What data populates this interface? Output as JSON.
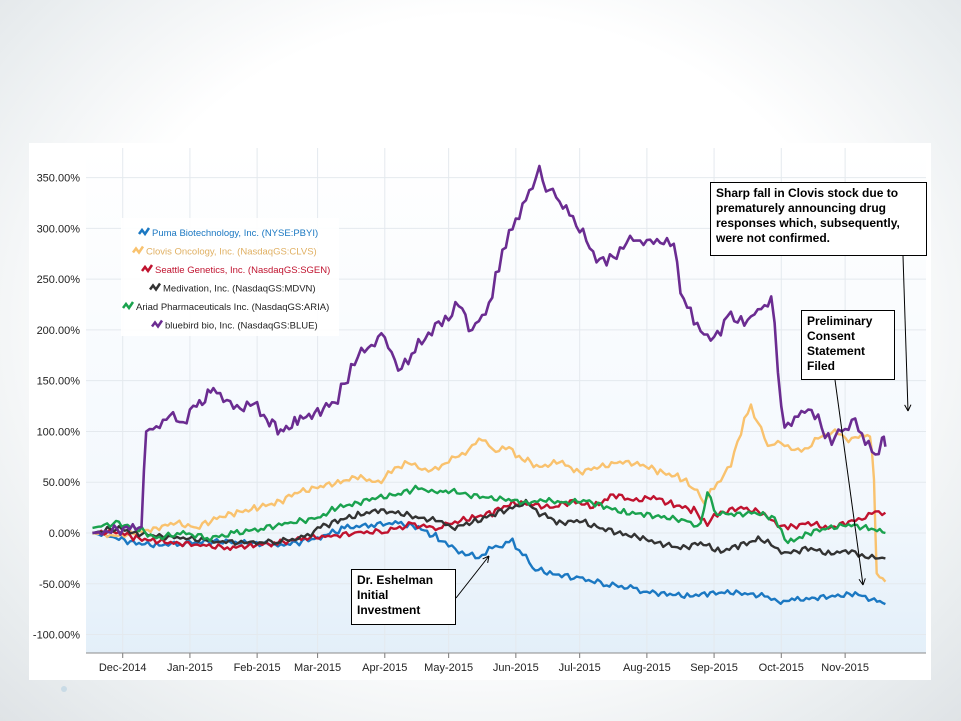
{
  "chart_data": {
    "type": "line",
    "title": "",
    "xlabel": "",
    "ylabel": "",
    "ylim": [
      -110,
      370
    ],
    "x_range": [
      0,
      11.5
    ],
    "y_ticks": [
      {
        "value": 350,
        "label": "350.00%"
      },
      {
        "value": 300,
        "label": "300.00%"
      },
      {
        "value": 250,
        "label": "250.00%"
      },
      {
        "value": 200,
        "label": "200.00%"
      },
      {
        "value": 150,
        "label": "150.00%"
      },
      {
        "value": 100,
        "label": "100.00%"
      },
      {
        "value": 50,
        "label": "50.00%"
      },
      {
        "value": 0,
        "label": "0.00%"
      },
      {
        "value": -50,
        "label": "-50.00%"
      },
      {
        "value": -100,
        "label": "-100.00%"
      }
    ],
    "x_ticks": [
      {
        "value": 0.1,
        "label": "Dec-2014"
      },
      {
        "value": 1.1,
        "label": "Jan-2015"
      },
      {
        "value": 2.1,
        "label": "Feb-2015"
      },
      {
        "value": 3.0,
        "label": "Mar-2015"
      },
      {
        "value": 4.0,
        "label": "Apr-2015"
      },
      {
        "value": 4.95,
        "label": "May-2015"
      },
      {
        "value": 5.95,
        "label": "Jun-2015"
      },
      {
        "value": 6.9,
        "label": "Jul-2015"
      },
      {
        "value": 7.9,
        "label": "Aug-2015"
      },
      {
        "value": 8.9,
        "label": "Sep-2015"
      },
      {
        "value": 9.9,
        "label": "Oct-2015"
      },
      {
        "value": 10.85,
        "label": "Nov-2015"
      }
    ],
    "series": [
      {
        "name": "Puma Biotechnology, Inc. (NYSE:PBYI)",
        "color": "#1b78c2",
        "points": [
          [
            -0.35,
            0
          ],
          [
            0,
            -5
          ],
          [
            0.3,
            -10
          ],
          [
            0.6,
            -12
          ],
          [
            1.0,
            -10
          ],
          [
            1.5,
            -8
          ],
          [
            2.0,
            -10
          ],
          [
            2.5,
            -12
          ],
          [
            3.0,
            -5
          ],
          [
            3.4,
            5
          ],
          [
            3.8,
            8
          ],
          [
            4.2,
            10
          ],
          [
            4.5,
            5
          ],
          [
            4.8,
            -5
          ],
          [
            5.0,
            -15
          ],
          [
            5.2,
            -20
          ],
          [
            5.4,
            -25
          ],
          [
            5.55,
            -15
          ],
          [
            5.75,
            -12
          ],
          [
            5.9,
            -8
          ],
          [
            6.05,
            -20
          ],
          [
            6.2,
            -35
          ],
          [
            6.5,
            -40
          ],
          [
            6.9,
            -45
          ],
          [
            7.3,
            -50
          ],
          [
            7.7,
            -55
          ],
          [
            7.9,
            -58
          ],
          [
            8.2,
            -60
          ],
          [
            8.5,
            -62
          ],
          [
            8.8,
            -60
          ],
          [
            9.1,
            -58
          ],
          [
            9.4,
            -60
          ],
          [
            9.65,
            -62
          ],
          [
            9.85,
            -68
          ],
          [
            10.1,
            -66
          ],
          [
            10.4,
            -64
          ],
          [
            10.7,
            -62
          ],
          [
            11.0,
            -60
          ],
          [
            11.2,
            -64
          ],
          [
            11.45,
            -70
          ]
        ]
      },
      {
        "name": "Clovis Oncology, Inc. (NasdaqGS:CLVS)",
        "color": "#f9c26e",
        "points": [
          [
            -0.35,
            0
          ],
          [
            0,
            -3
          ],
          [
            0.3,
            0
          ],
          [
            0.6,
            5
          ],
          [
            0.9,
            10
          ],
          [
            1.2,
            5
          ],
          [
            1.5,
            15
          ],
          [
            1.8,
            20
          ],
          [
            2.1,
            25
          ],
          [
            2.4,
            30
          ],
          [
            2.7,
            40
          ],
          [
            3.0,
            45
          ],
          [
            3.3,
            50
          ],
          [
            3.6,
            55
          ],
          [
            3.9,
            50
          ],
          [
            4.1,
            60
          ],
          [
            4.3,
            70
          ],
          [
            4.5,
            65
          ],
          [
            4.7,
            60
          ],
          [
            4.9,
            70
          ],
          [
            5.1,
            75
          ],
          [
            5.3,
            85
          ],
          [
            5.45,
            95
          ],
          [
            5.6,
            80
          ],
          [
            5.8,
            85
          ],
          [
            6.0,
            75
          ],
          [
            6.3,
            65
          ],
          [
            6.6,
            70
          ],
          [
            6.9,
            60
          ],
          [
            7.2,
            65
          ],
          [
            7.5,
            70
          ],
          [
            7.8,
            68
          ],
          [
            8.1,
            60
          ],
          [
            8.4,
            55
          ],
          [
            8.65,
            40
          ],
          [
            8.75,
            30
          ],
          [
            8.9,
            45
          ],
          [
            9.1,
            60
          ],
          [
            9.3,
            100
          ],
          [
            9.45,
            125
          ],
          [
            9.55,
            110
          ],
          [
            9.7,
            85
          ],
          [
            9.9,
            90
          ],
          [
            10.1,
            80
          ],
          [
            10.3,
            85
          ],
          [
            10.5,
            95
          ],
          [
            10.7,
            100
          ],
          [
            10.9,
            92
          ],
          [
            11.1,
            95
          ],
          [
            11.22,
            100
          ],
          [
            11.28,
            50
          ],
          [
            11.32,
            -40
          ],
          [
            11.45,
            -48
          ]
        ]
      },
      {
        "name": "Seattle Genetics, Inc. (NasdaqGS:SGEN)",
        "color": "#c0132f",
        "points": [
          [
            -0.35,
            0
          ],
          [
            0,
            2
          ],
          [
            0.3,
            -5
          ],
          [
            0.6,
            -8
          ],
          [
            0.9,
            -10
          ],
          [
            1.3,
            -12
          ],
          [
            1.7,
            -15
          ],
          [
            2.0,
            -12
          ],
          [
            2.4,
            -10
          ],
          [
            2.8,
            -5
          ],
          [
            3.2,
            -3
          ],
          [
            3.6,
            0
          ],
          [
            4.0,
            2
          ],
          [
            4.4,
            8
          ],
          [
            4.8,
            5
          ],
          [
            5.0,
            10
          ],
          [
            5.3,
            15
          ],
          [
            5.6,
            20
          ],
          [
            5.9,
            30
          ],
          [
            6.2,
            28
          ],
          [
            6.5,
            25
          ],
          [
            6.8,
            32
          ],
          [
            7.1,
            25
          ],
          [
            7.4,
            38
          ],
          [
            7.7,
            32
          ],
          [
            8.0,
            35
          ],
          [
            8.3,
            28
          ],
          [
            8.6,
            22
          ],
          [
            8.8,
            10
          ],
          [
            9.0,
            20
          ],
          [
            9.3,
            25
          ],
          [
            9.6,
            20
          ],
          [
            9.8,
            10
          ],
          [
            10.0,
            5
          ],
          [
            10.3,
            10
          ],
          [
            10.6,
            5
          ],
          [
            10.9,
            10
          ],
          [
            11.1,
            15
          ],
          [
            11.3,
            20
          ],
          [
            11.45,
            20
          ]
        ]
      },
      {
        "name": "Medivation, Inc. (NasdaqGS:MDVN)",
        "color": "#333333",
        "points": [
          [
            -0.35,
            0
          ],
          [
            0,
            5
          ],
          [
            0.3,
            0
          ],
          [
            0.6,
            -3
          ],
          [
            1.0,
            -5
          ],
          [
            1.5,
            -8
          ],
          [
            2.0,
            -10
          ],
          [
            2.4,
            -8
          ],
          [
            2.8,
            -5
          ],
          [
            3.0,
            5
          ],
          [
            3.3,
            12
          ],
          [
            3.6,
            18
          ],
          [
            3.9,
            22
          ],
          [
            4.2,
            20
          ],
          [
            4.5,
            15
          ],
          [
            4.8,
            12
          ],
          [
            5.0,
            5
          ],
          [
            5.3,
            10
          ],
          [
            5.6,
            18
          ],
          [
            5.9,
            25
          ],
          [
            6.1,
            30
          ],
          [
            6.3,
            20
          ],
          [
            6.6,
            10
          ],
          [
            6.9,
            12
          ],
          [
            7.2,
            5
          ],
          [
            7.5,
            0
          ],
          [
            7.8,
            -5
          ],
          [
            8.1,
            -10
          ],
          [
            8.4,
            -15
          ],
          [
            8.7,
            -10
          ],
          [
            9.0,
            -18
          ],
          [
            9.3,
            -12
          ],
          [
            9.6,
            -5
          ],
          [
            9.8,
            -15
          ],
          [
            10.0,
            -20
          ],
          [
            10.3,
            -15
          ],
          [
            10.6,
            -20
          ],
          [
            10.9,
            -18
          ],
          [
            11.1,
            -22
          ],
          [
            11.3,
            -25
          ],
          [
            11.45,
            -25
          ]
        ]
      },
      {
        "name": "Ariad Pharmaceuticals Inc. (NasdaqGS:ARIA)",
        "color": "#1aa24e",
        "points": [
          [
            -0.35,
            5
          ],
          [
            0,
            10
          ],
          [
            0.3,
            5
          ],
          [
            0.6,
            -5
          ],
          [
            1.0,
            0
          ],
          [
            1.4,
            -5
          ],
          [
            1.8,
            0
          ],
          [
            2.2,
            5
          ],
          [
            2.6,
            10
          ],
          [
            3.0,
            15
          ],
          [
            3.3,
            25
          ],
          [
            3.6,
            30
          ],
          [
            3.9,
            35
          ],
          [
            4.2,
            38
          ],
          [
            4.5,
            45
          ],
          [
            4.7,
            40
          ],
          [
            4.95,
            42
          ],
          [
            5.2,
            38
          ],
          [
            5.5,
            35
          ],
          [
            5.8,
            33
          ],
          [
            6.1,
            30
          ],
          [
            6.4,
            32
          ],
          [
            6.7,
            30
          ],
          [
            7.0,
            32
          ],
          [
            7.3,
            25
          ],
          [
            7.6,
            20
          ],
          [
            7.9,
            18
          ],
          [
            8.2,
            15
          ],
          [
            8.5,
            12
          ],
          [
            8.7,
            5
          ],
          [
            8.8,
            45
          ],
          [
            8.9,
            20
          ],
          [
            9.2,
            18
          ],
          [
            9.5,
            20
          ],
          [
            9.8,
            15
          ],
          [
            10.0,
            -10
          ],
          [
            10.3,
            0
          ],
          [
            10.6,
            5
          ],
          [
            10.9,
            8
          ],
          [
            11.2,
            5
          ],
          [
            11.45,
            0
          ]
        ]
      },
      {
        "name": "bluebird bio, Inc. (NasdaqGS:BLUE)",
        "color": "#6b2c91",
        "points": [
          [
            -0.35,
            0
          ],
          [
            0.25,
            5
          ],
          [
            0.38,
            10
          ],
          [
            0.45,
            100
          ],
          [
            0.6,
            105
          ],
          [
            0.8,
            115
          ],
          [
            1.0,
            110
          ],
          [
            1.2,
            125
          ],
          [
            1.45,
            140
          ],
          [
            1.6,
            135
          ],
          [
            1.8,
            120
          ],
          [
            2.0,
            130
          ],
          [
            2.2,
            115
          ],
          [
            2.45,
            100
          ],
          [
            2.7,
            110
          ],
          [
            3.0,
            120
          ],
          [
            3.3,
            130
          ],
          [
            3.5,
            165
          ],
          [
            3.7,
            180
          ],
          [
            3.9,
            190
          ],
          [
            4.0,
            198
          ],
          [
            4.1,
            175
          ],
          [
            4.2,
            160
          ],
          [
            4.35,
            170
          ],
          [
            4.5,
            185
          ],
          [
            4.7,
            200
          ],
          [
            4.9,
            210
          ],
          [
            5.1,
            225
          ],
          [
            5.3,
            200
          ],
          [
            5.45,
            215
          ],
          [
            5.6,
            230
          ],
          [
            5.75,
            280
          ],
          [
            5.9,
            300
          ],
          [
            6.05,
            320
          ],
          [
            6.2,
            345
          ],
          [
            6.3,
            355
          ],
          [
            6.4,
            340
          ],
          [
            6.55,
            330
          ],
          [
            6.7,
            320
          ],
          [
            6.9,
            300
          ],
          [
            7.1,
            275
          ],
          [
            7.3,
            265
          ],
          [
            7.5,
            280
          ],
          [
            7.7,
            290
          ],
          [
            7.9,
            285
          ],
          [
            8.1,
            290
          ],
          [
            8.3,
            280
          ],
          [
            8.45,
            230
          ],
          [
            8.6,
            210
          ],
          [
            8.8,
            190
          ],
          [
            9.0,
            200
          ],
          [
            9.15,
            215
          ],
          [
            9.35,
            205
          ],
          [
            9.5,
            215
          ],
          [
            9.65,
            225
          ],
          [
            9.75,
            230
          ],
          [
            9.85,
            160
          ],
          [
            9.95,
            105
          ],
          [
            10.1,
            110
          ],
          [
            10.25,
            125
          ],
          [
            10.45,
            110
          ],
          [
            10.65,
            90
          ],
          [
            10.8,
            100
          ],
          [
            11.0,
            110
          ],
          [
            11.15,
            90
          ],
          [
            11.3,
            75
          ],
          [
            11.4,
            95
          ],
          [
            11.45,
            85
          ]
        ]
      }
    ],
    "annotations": [
      {
        "id": "clovis",
        "text": "Sharp fall in Clovis stock due to prematurely announcing drug responses which, subsequently, were not confirmed."
      },
      {
        "id": "consent",
        "text": "Preliminary Consent Statement Filed"
      },
      {
        "id": "eshelman",
        "text": "Dr. Eshelman Initial Investment"
      }
    ]
  }
}
